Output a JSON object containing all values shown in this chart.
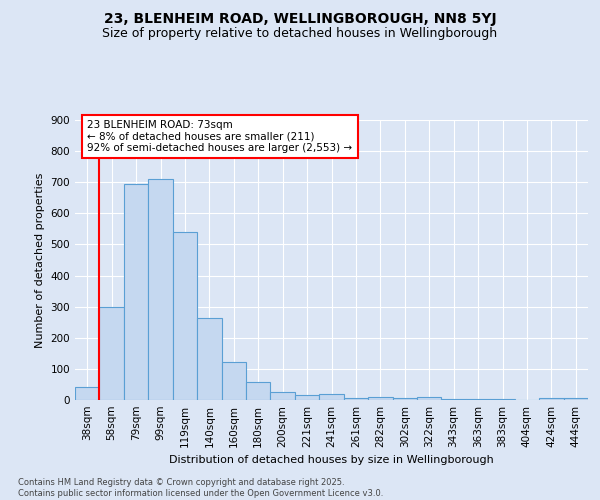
{
  "title1": "23, BLENHEIM ROAD, WELLINGBOROUGH, NN8 5YJ",
  "title2": "Size of property relative to detached houses in Wellingborough",
  "xlabel": "Distribution of detached houses by size in Wellingborough",
  "ylabel": "Number of detached properties",
  "footer": "Contains HM Land Registry data © Crown copyright and database right 2025.\nContains public sector information licensed under the Open Government Licence v3.0.",
  "categories": [
    "38sqm",
    "58sqm",
    "79sqm",
    "99sqm",
    "119sqm",
    "140sqm",
    "160sqm",
    "180sqm",
    "200sqm",
    "221sqm",
    "241sqm",
    "261sqm",
    "282sqm",
    "302sqm",
    "322sqm",
    "343sqm",
    "363sqm",
    "383sqm",
    "404sqm",
    "424sqm",
    "444sqm"
  ],
  "values": [
    42,
    300,
    695,
    710,
    540,
    265,
    122,
    57,
    25,
    15,
    18,
    8,
    10,
    5,
    10,
    3,
    2,
    3,
    1,
    5,
    7
  ],
  "bar_color": "#c5d8f0",
  "bar_edge_color": "#5a9fd4",
  "vline_x": 0.5,
  "vline_color": "red",
  "annotation_text": "23 BLENHEIM ROAD: 73sqm\n← 8% of detached houses are smaller (211)\n92% of semi-detached houses are larger (2,553) →",
  "annotation_box_color": "white",
  "annotation_box_edge": "red",
  "bg_color": "#dce6f5",
  "plot_bg_color": "#dce6f5",
  "ylim": [
    0,
    900
  ],
  "yticks": [
    0,
    100,
    200,
    300,
    400,
    500,
    600,
    700,
    800,
    900
  ],
  "title1_fontsize": 10,
  "title2_fontsize": 9,
  "annotation_fontsize": 7.5,
  "ylabel_fontsize": 8,
  "xlabel_fontsize": 8,
  "tick_fontsize": 7.5,
  "footer_fontsize": 6.0
}
